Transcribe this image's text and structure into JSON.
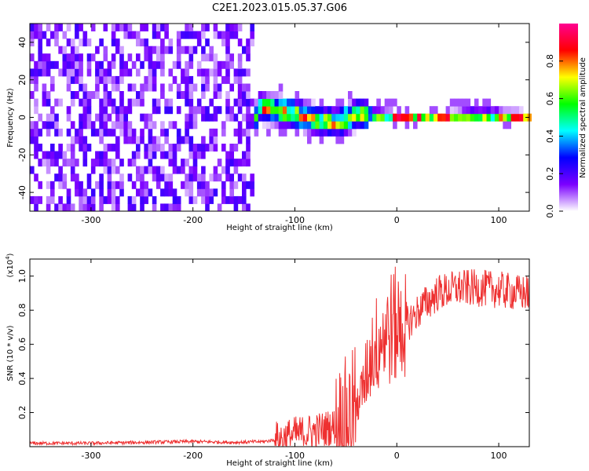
{
  "title": "C2E1.2023.015.05.37.G06",
  "chart_data": [
    {
      "type": "heatmap",
      "title": "C2E1.2023.015.05.37.G06",
      "xlabel": "Height of straight line (km)",
      "ylabel": "Frequency (Hz)",
      "xlim": [
        -360,
        130
      ],
      "ylim": [
        -50,
        50
      ],
      "xticks": [
        -300,
        -200,
        -100,
        0,
        100
      ],
      "xtick_labels": [
        "-300",
        "-200",
        "-100",
        "0",
        "100"
      ],
      "yticks": [
        -40,
        -20,
        0,
        20,
        40
      ],
      "ytick_labels": [
        "-40",
        "-20",
        "0",
        "20",
        "40"
      ],
      "colorbar": {
        "label": "Normalized spectral amplitude",
        "range": [
          0.0,
          1.0
        ],
        "ticks": [
          0.0,
          0.2,
          0.4,
          0.6,
          0.8
        ],
        "tick_labels": [
          "0.0",
          "0.2",
          "0.4",
          "0.6",
          "0.8"
        ],
        "colormap": [
          "#ffffff",
          "#7b00ff",
          "#0000ff",
          "#00ffff",
          "#00ff00",
          "#ffff00",
          "#ff0000",
          "#ff0090"
        ]
      },
      "regions": [
        {
          "name": "noise",
          "x_range": [
            -360,
            -140
          ],
          "freq_range": [
            -50,
            50
          ],
          "amplitude": 0.15
        },
        {
          "name": "signal",
          "x_range": [
            -140,
            130
          ],
          "center_freq": 0,
          "amplitude": 0.9
        }
      ],
      "signal_center": [
        {
          "x": -135,
          "f": 5
        },
        {
          "x": -120,
          "f": 4
        },
        {
          "x": -100,
          "f": 2
        },
        {
          "x": -80,
          "f": -1
        },
        {
          "x": -60,
          "f": -3
        },
        {
          "x": -45,
          "f": 0
        },
        {
          "x": -35,
          "f": 2
        },
        {
          "x": -20,
          "f": 1
        },
        {
          "x": 0,
          "f": 0
        },
        {
          "x": 50,
          "f": 0
        },
        {
          "x": 80,
          "f": 1
        },
        {
          "x": 130,
          "f": 0
        }
      ]
    },
    {
      "type": "line",
      "xlabel": "Height of straight line (km)",
      "ylabel": "SNR (10 * v/v)",
      "y_multiplier": "(x10",
      "y_multiplier_exp": "4",
      "y_multiplier_close": ")",
      "xlim": [
        -360,
        130
      ],
      "ylim": [
        0,
        1.1
      ],
      "xticks": [
        -300,
        -200,
        -100,
        0,
        100
      ],
      "xtick_labels": [
        "-300",
        "-200",
        "-100",
        "0",
        "100"
      ],
      "yticks": [
        0.2,
        0.4,
        0.6,
        0.8,
        1.0
      ],
      "ytick_labels": [
        "0.2",
        "0.4",
        "0.6",
        "0.8",
        "1.0"
      ],
      "series": [
        {
          "color": "#ee3030",
          "x": [
            -360,
            -300,
            -250,
            -200,
            -160,
            -130,
            -110,
            -100,
            -80,
            -60,
            -45,
            -35,
            -25,
            -15,
            -5,
            10,
            25,
            40,
            60,
            80,
            100,
            120,
            130
          ],
          "y": [
            0.02,
            0.02,
            0.025,
            0.03,
            0.025,
            0.03,
            0.05,
            0.07,
            0.09,
            0.12,
            0.2,
            0.3,
            0.55,
            0.65,
            0.7,
            0.72,
            0.82,
            0.9,
            0.93,
            0.93,
            0.92,
            0.9,
            0.9
          ]
        }
      ]
    }
  ]
}
